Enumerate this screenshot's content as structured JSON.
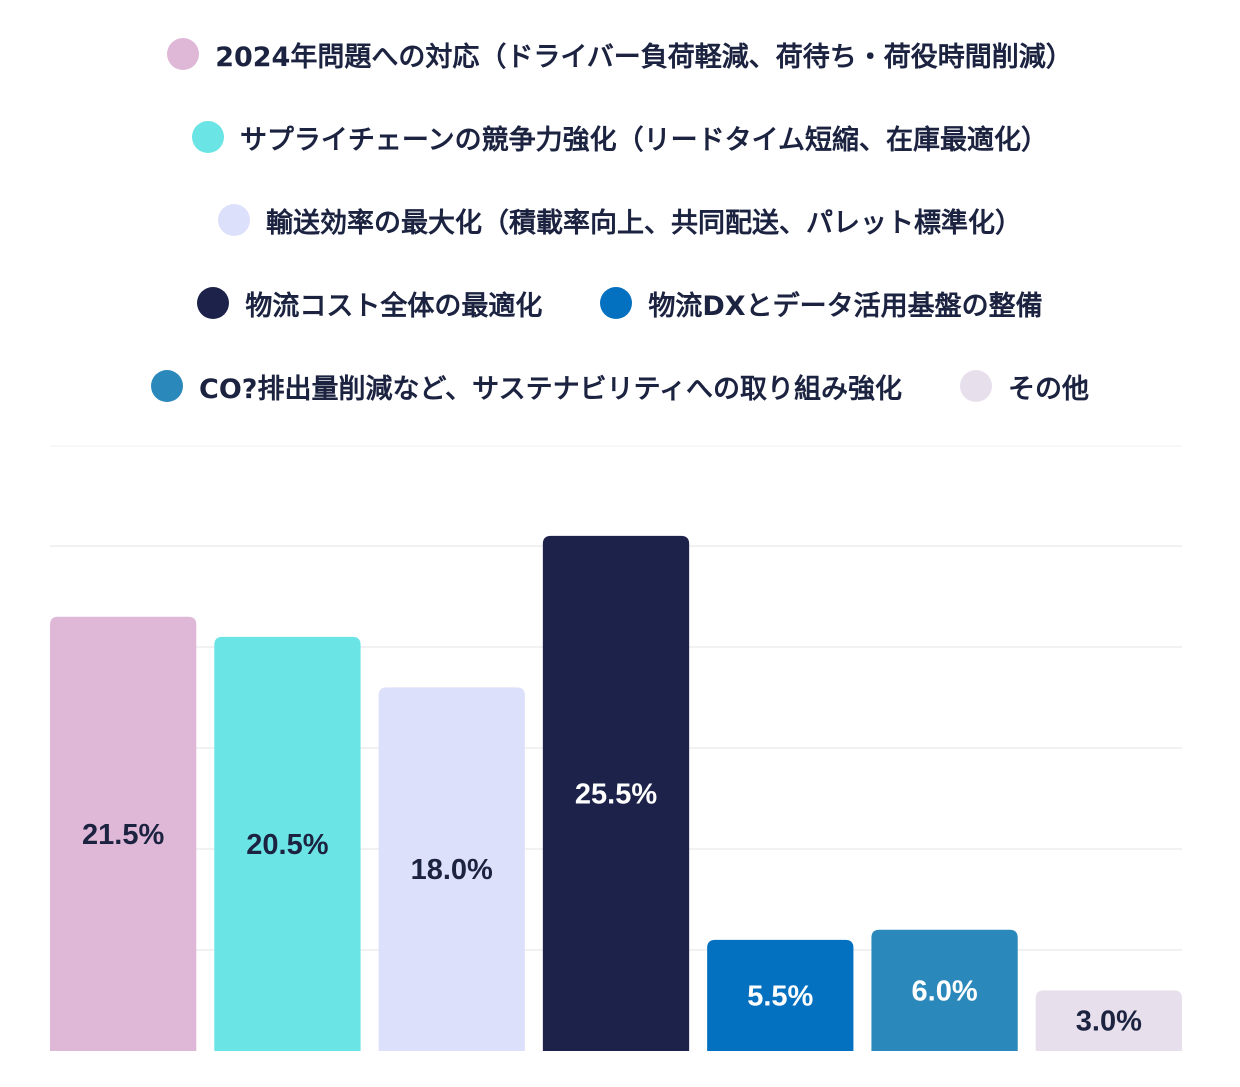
{
  "chart_data": {
    "type": "bar",
    "categories": [
      "2024年問題への対応（ドライバー負荷軽減、荷待ち・荷役時間削減）",
      "サプライチェーンの競争力強化（リードタイム短縮、在庫最適化）",
      "輸送効率の最大化（積載率向上、共同配送、パレット標準化）",
      "物流コスト全体の最適化",
      "物流DXとデータ活用基盤の整備",
      "CO?排出量削減など、サステナビリティへの取り組み強化",
      "その他"
    ],
    "values": [
      21.5,
      20.5,
      18.0,
      25.5,
      5.5,
      6.0,
      3.0
    ],
    "value_labels": [
      "21.5%",
      "20.5%",
      "18.0%",
      "25.5%",
      "5.5%",
      "6.0%",
      "3.0%"
    ],
    "colors": [
      "#dfb8d8",
      "#6ae4e4",
      "#dde0fa",
      "#1c2249",
      "#0470c0",
      "#2b88bb",
      "#e7e0ec"
    ],
    "label_colors": [
      "#1c2340",
      "#1c2340",
      "#1c2340",
      "#ffffff",
      "#ffffff",
      "#ffffff",
      "#1c2340"
    ],
    "title": "",
    "xlabel": "",
    "ylabel": "",
    "ylim": [
      0,
      25
    ],
    "grid": true,
    "legend_position": "top-center"
  }
}
